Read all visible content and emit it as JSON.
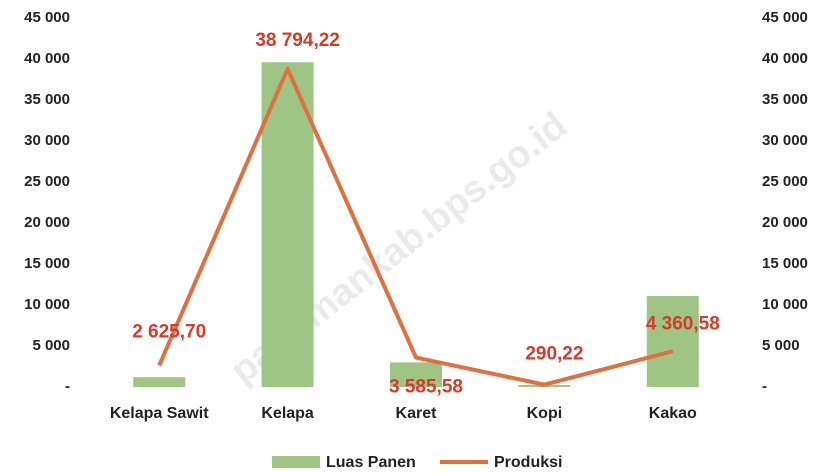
{
  "chart_data": {
    "type": "bar_line",
    "watermark": "pariamankab.bps.go.id",
    "categories": [
      "Kelapa Sawit",
      "Kelapa",
      "Karet",
      "Kopi",
      "Kakao"
    ],
    "series": [
      {
        "name": "Luas Panen",
        "type": "bar",
        "color": "#9fc585",
        "values": [
          1200,
          39600,
          3000,
          250,
          11100
        ]
      },
      {
        "name": "Produksi",
        "type": "line",
        "axis": "y2",
        "color": "#e07040",
        "values": [
          2625.7,
          38794.22,
          3585.58,
          290.22,
          4360.58
        ],
        "value_labels": [
          "2 625,70",
          "38 794,22",
          "3 585,58",
          "290,22",
          "4 360,58"
        ]
      }
    ],
    "ylim": [
      0,
      45000
    ],
    "yticks": [
      {
        "value": 0,
        "label": "-"
      },
      {
        "value": 5000,
        "label": "5 000"
      },
      {
        "value": 10000,
        "label": "10 000"
      },
      {
        "value": 15000,
        "label": "15 000"
      },
      {
        "value": 20000,
        "label": "20 000"
      },
      {
        "value": 25000,
        "label": "25 000"
      },
      {
        "value": 30000,
        "label": "30 000"
      },
      {
        "value": 35000,
        "label": "35 000"
      },
      {
        "value": 40000,
        "label": "40 000"
      },
      {
        "value": 45000,
        "label": "45 000"
      }
    ],
    "y2lim": [
      0,
      45000
    ],
    "y2ticks": [
      {
        "value": 0,
        "label": "-"
      },
      {
        "value": 5000,
        "label": "5 000"
      },
      {
        "value": 10000,
        "label": "10 000"
      },
      {
        "value": 15000,
        "label": "15 000"
      },
      {
        "value": 20000,
        "label": "20 000"
      },
      {
        "value": 25000,
        "label": "25 000"
      },
      {
        "value": 30000,
        "label": "30 000"
      },
      {
        "value": 35000,
        "label": "35 000"
      },
      {
        "value": 40000,
        "label": "40 000"
      },
      {
        "value": 45000,
        "label": "45 000"
      }
    ],
    "value_label_color": "#d83a2a",
    "legend": "bottom"
  }
}
